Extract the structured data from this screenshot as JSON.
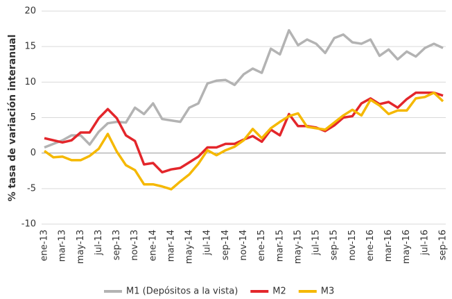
{
  "chart_data": {
    "type": "line",
    "y_label": "% tasa de variación interanual",
    "categories": [
      "ene-13",
      null,
      "mar-13",
      null,
      "may-13",
      null,
      "jul-13",
      null,
      "sep-13",
      null,
      "nov-13",
      null,
      "ene-14",
      null,
      "mar-14",
      null,
      "may-14",
      null,
      "jul-14",
      null,
      "sep-14",
      null,
      "nov-14",
      null,
      "ene-15",
      null,
      "mar-15",
      null,
      "may-15",
      null,
      "jul-15",
      null,
      "sep-15",
      null,
      "nov-15",
      null,
      "ene-16",
      null,
      "mar-16",
      null,
      "may-16",
      null,
      "jul-16",
      null,
      "sep-16"
    ],
    "series": [
      {
        "name": "M1 (Depósitos a la vista)",
        "color": "#b3b3b3",
        "values": [
          0.8,
          1.3,
          1.8,
          2.5,
          2.5,
          1.2,
          3,
          4.2,
          4.4,
          4.3,
          6.4,
          5.5,
          7.0,
          4.8,
          4.6,
          4.4,
          6.4,
          7.0,
          9.8,
          10.2,
          10.3,
          9.6,
          11.1,
          11.9,
          11.3,
          14.7,
          13.9,
          17.3,
          15.2,
          16.0,
          15.4,
          14.1,
          16.2,
          16.7,
          15.6,
          15.4,
          16.0,
          13.7,
          14.6,
          13.2,
          14.3,
          13.6,
          14.8,
          15.4,
          14.8
        ]
      },
      {
        "name": "M2",
        "color": "#e3262b",
        "values": [
          2.1,
          1.8,
          1.5,
          1.8,
          2.9,
          2.9,
          4.9,
          6.2,
          4.9,
          2.5,
          1.7,
          -1.6,
          -1.4,
          -2.7,
          -2.3,
          -2.1,
          -1.3,
          -0.5,
          0.8,
          0.8,
          1.3,
          1.3,
          1.9,
          2.4,
          1.6,
          3.3,
          2.5,
          5.5,
          3.8,
          3.8,
          3.6,
          3.1,
          3.9,
          5.0,
          5.2,
          7.0,
          7.7,
          6.9,
          7.2,
          6.4,
          7.6,
          8.5,
          8.5,
          8.5,
          8.1
        ]
      },
      {
        "name": "M3",
        "color": "#f5b800",
        "values": [
          0.3,
          -0.6,
          -0.5,
          -1.0,
          -1.0,
          -0.4,
          0.6,
          2.7,
          0.2,
          -1.7,
          -2.4,
          -4.4,
          -4.4,
          -4.7,
          -5.1,
          -4.0,
          -3.0,
          -1.5,
          0.4,
          -0.3,
          0.4,
          0.9,
          1.8,
          3.4,
          2.1,
          3.5,
          4.4,
          5.2,
          5.6,
          3.7,
          3.5,
          3.3,
          4.3,
          5.3,
          6.1,
          5.3,
          7.5,
          6.7,
          5.5,
          6.0,
          6.0,
          7.7,
          7.9,
          8.5,
          7.3
        ]
      }
    ],
    "ylim": [
      -10,
      20
    ],
    "yticks": [
      -10,
      -5,
      0,
      5,
      10,
      15,
      20
    ],
    "grid": true,
    "legend": "bottom"
  }
}
